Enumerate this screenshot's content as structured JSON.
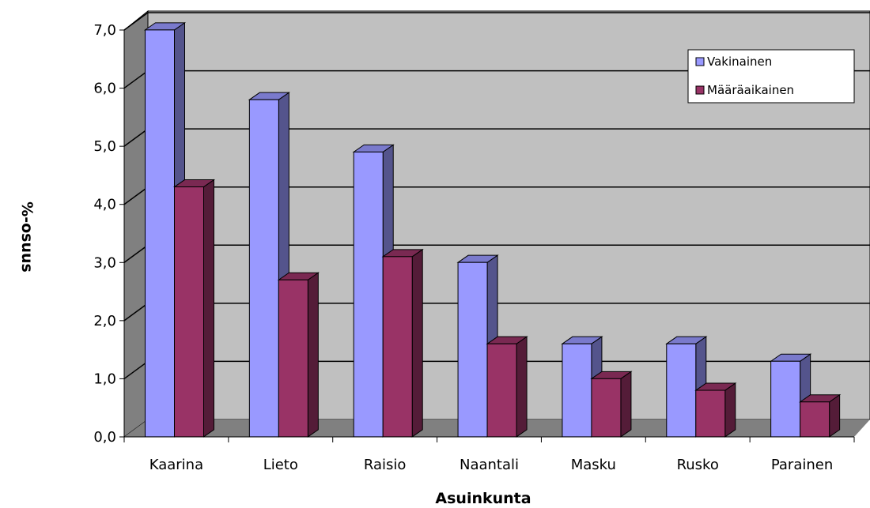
{
  "chart_data": {
    "type": "bar",
    "title": "",
    "xlabel": "Asuinkunta",
    "ylabel": "%-osuus",
    "categories": [
      "Kaarina",
      "Lieto",
      "Raisio",
      "Naantali",
      "Masku",
      "Rusko",
      "Parainen"
    ],
    "series": [
      {
        "name": "Vakinainen",
        "values": [
          7.0,
          5.8,
          4.9,
          3.0,
          1.6,
          1.6,
          1.3
        ],
        "color": "#9999ff"
      },
      {
        "name": "Määräaikainen",
        "values": [
          4.3,
          2.7,
          3.1,
          1.6,
          1.0,
          0.8,
          0.6
        ],
        "color": "#993366"
      }
    ],
    "ylim": [
      0,
      7
    ],
    "yticks": [
      0,
      1,
      2,
      3,
      4,
      5,
      6,
      7
    ],
    "ytick_labels": [
      "0,0",
      "1,0",
      "2,0",
      "3,0",
      "4,0",
      "5,0",
      "6,0",
      "7,0"
    ],
    "grid": true,
    "legend_position": "top-right",
    "three_d": true,
    "wall_color": "#c0c0c0",
    "floor_color": "#808080",
    "side_wall_color": "#808080"
  }
}
